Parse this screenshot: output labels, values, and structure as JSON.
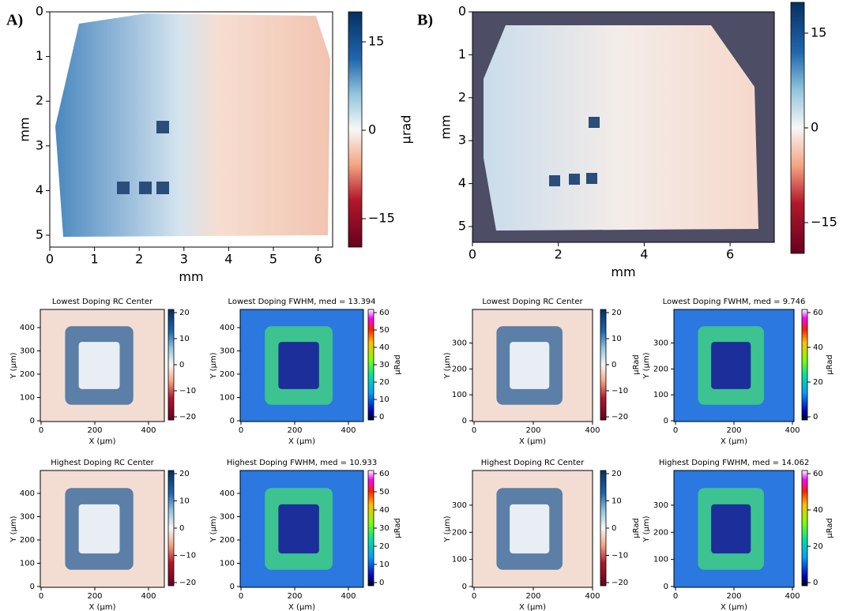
{
  "panels": [
    {
      "label": "A)",
      "xlabel": "mm",
      "ylabel": "mm",
      "xticks": [
        "0",
        "1",
        "2",
        "3",
        "4",
        "5",
        "6"
      ],
      "yticks": [
        "0",
        "1",
        "2",
        "3",
        "4",
        "5"
      ],
      "colorbar": {
        "label": "µrad",
        "ticks": [
          "15",
          "0",
          "−15"
        ]
      }
    },
    {
      "label": "B)",
      "xlabel": "mm",
      "ylabel": "mm",
      "xticks": [
        "0",
        "2",
        "4",
        "6"
      ],
      "yticks": [
        "0",
        "1",
        "2",
        "3",
        "4",
        "5"
      ],
      "colorbar": {
        "ticks": [
          "15",
          "0",
          "−15"
        ]
      }
    }
  ],
  "subplots": [
    {
      "title": "Lowest Doping RC Center",
      "xlabel": "X (μm)",
      "ylabel": "Y (μm)",
      "xticks": [
        "0",
        "200",
        "400"
      ],
      "yticks": [
        "0",
        "100",
        "200",
        "300",
        "400"
      ],
      "colorbar": {
        "ticks": [
          "20",
          "10",
          "0",
          "−10",
          "−20"
        ]
      }
    },
    {
      "title": "Lowest Doping FWHM, med = 13.394",
      "xlabel": "X (μm)",
      "ylabel": "Y (μm)",
      "xticks": [
        "0",
        "200",
        "400"
      ],
      "yticks": [
        "0",
        "100",
        "200",
        "300",
        "400"
      ],
      "colorbar": {
        "label": "μRad",
        "ticks": [
          "60",
          "50",
          "40",
          "30",
          "20",
          "10",
          "0"
        ]
      }
    },
    {
      "title": "Highest Doping RC Center",
      "xlabel": "X (μm)",
      "ylabel": "Y (μm)",
      "xticks": [
        "0",
        "200",
        "400"
      ],
      "yticks": [
        "0",
        "100",
        "200",
        "300",
        "400"
      ],
      "colorbar": {
        "ticks": [
          "20",
          "10",
          "0",
          "−10",
          "−20"
        ]
      }
    },
    {
      "title": "Highest Doping FWHM, med = 10.933",
      "xlabel": "X (μm)",
      "ylabel": "Y (μm)",
      "xticks": [
        "0",
        "200",
        "400"
      ],
      "yticks": [
        "0",
        "100",
        "200",
        "300",
        "400"
      ],
      "colorbar": {
        "label": "μRad",
        "ticks": [
          "60",
          "50",
          "40",
          "30",
          "20",
          "10",
          "0"
        ]
      }
    },
    {
      "title": "Lowest Doping RC Center",
      "xlabel": "X (μm)",
      "ylabel": "Y (μm)",
      "xticks": [
        "0",
        "200",
        "400"
      ],
      "yticks": [
        "0",
        "100",
        "200",
        "300"
      ],
      "colorbar": {
        "label": "μRad",
        "ticks": [
          "20",
          "10",
          "0",
          "−10",
          "−20"
        ]
      }
    },
    {
      "title": "Lowest Doping FWHM, med = 9.746",
      "xlabel": "X (μm)",
      "ylabel": "Y (μm)",
      "xticks": [
        "0",
        "200",
        "400"
      ],
      "yticks": [
        "0",
        "100",
        "200",
        "300"
      ],
      "colorbar": {
        "label": "μRad",
        "ticks": [
          "60",
          "40",
          "20",
          "0"
        ]
      }
    },
    {
      "title": "Highest Doping RC Center",
      "xlabel": "X (μm)",
      "ylabel": "Y (μm)",
      "xticks": [
        "0",
        "200",
        "400"
      ],
      "yticks": [
        "0",
        "100",
        "200",
        "300"
      ],
      "colorbar": {
        "label": "μRad",
        "ticks": [
          "20",
          "10",
          "0",
          "−10",
          "−20"
        ]
      }
    },
    {
      "title": "Highest Doping FWHM, med = 14.062",
      "xlabel": "X (μm)",
      "ylabel": "Y (μm)",
      "xticks": [
        "0",
        "200",
        "400"
      ],
      "yticks": [
        "0",
        "100",
        "200",
        "300"
      ],
      "colorbar": {
        "label": "μRad",
        "ticks": [
          "60",
          "40",
          "20",
          "0"
        ]
      }
    }
  ]
}
